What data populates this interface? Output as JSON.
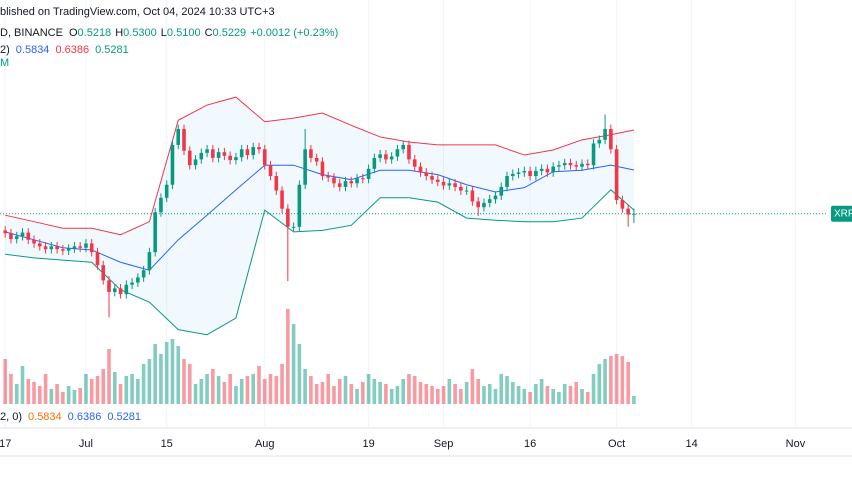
{
  "chart_data": {
    "type": "candlestick",
    "header": "blished on TradingView.com, Oct 04, 2024 10:33 UTC+3",
    "symbol": "D, BINANCE",
    "ohlc_legend": [
      {
        "label": "O",
        "value": "0.5218"
      },
      {
        "label": "H",
        "value": "0.5300"
      },
      {
        "label": "L",
        "value": "0.5100"
      },
      {
        "label": "C",
        "value": "0.5229"
      }
    ],
    "change": "+0.0012 (+0.23%)",
    "indicator_legend": {
      "params": "2)",
      "values": [
        "0.5834",
        "0.6386",
        "0.5281"
      ]
    },
    "indicator_tag": "M",
    "bottom_legend": {
      "params": "2, 0)",
      "values": [
        "0.5834",
        "0.6386",
        "0.5281"
      ]
    },
    "price_tag": "XRP",
    "up_color": "#089981",
    "down_color": "#f23645",
    "xlim": [
      -0.9,
      142.3
    ],
    "ylim": [
      0.259,
      0.818
    ],
    "volume_lim": [
      0,
      100
    ],
    "xticks": [
      {
        "value": 0,
        "label": "17"
      },
      {
        "value": 14,
        "label": "Jul"
      },
      {
        "value": 28,
        "label": "15"
      },
      {
        "value": 45,
        "label": "Aug"
      },
      {
        "value": 63,
        "label": "19"
      },
      {
        "value": 76,
        "label": "Sep"
      },
      {
        "value": 91,
        "label": "16"
      },
      {
        "value": 106,
        "label": "Oct"
      },
      {
        "value": 119,
        "label": "14"
      },
      {
        "value": 137,
        "label": "Nov"
      }
    ],
    "open": [
      0.5,
      0.496,
      0.488,
      0.492,
      0.497,
      0.487,
      0.482,
      0.478,
      0.474,
      0.478,
      0.474,
      0.472,
      0.475,
      0.478,
      0.476,
      0.482,
      0.47,
      0.452,
      0.431,
      0.415,
      0.42,
      0.412,
      0.425,
      0.428,
      0.435,
      0.445,
      0.47,
      0.525,
      0.545,
      0.563,
      0.618,
      0.64,
      0.61,
      0.59,
      0.598,
      0.607,
      0.612,
      0.6,
      0.608,
      0.603,
      0.597,
      0.601,
      0.612,
      0.604,
      0.615,
      0.612,
      0.59,
      0.575,
      0.555,
      0.53,
      0.505,
      0.505,
      0.563,
      0.612,
      0.6,
      0.595,
      0.575,
      0.573,
      0.565,
      0.56,
      0.568,
      0.565,
      0.572,
      0.571,
      0.585,
      0.6,
      0.605,
      0.598,
      0.602,
      0.612,
      0.618,
      0.598,
      0.588,
      0.58,
      0.575,
      0.57,
      0.567,
      0.562,
      0.565,
      0.56,
      0.555,
      0.555,
      0.54,
      0.532,
      0.538,
      0.543,
      0.548,
      0.56,
      0.575,
      0.578,
      0.58,
      0.582,
      0.575,
      0.582,
      0.585,
      0.58,
      0.588,
      0.59,
      0.593,
      0.59,
      0.588,
      0.592,
      0.59,
      0.62,
      0.625,
      0.64,
      0.612,
      0.542,
      0.53,
      0.5218
    ],
    "high": [
      0.506,
      0.502,
      0.498,
      0.503,
      0.503,
      0.493,
      0.488,
      0.484,
      0.484,
      0.484,
      0.48,
      0.481,
      0.484,
      0.484,
      0.488,
      0.488,
      0.476,
      0.458,
      0.437,
      0.426,
      0.426,
      0.431,
      0.434,
      0.441,
      0.451,
      0.476,
      0.531,
      0.551,
      0.569,
      0.624,
      0.646,
      0.646,
      0.616,
      0.604,
      0.613,
      0.618,
      0.618,
      0.614,
      0.614,
      0.609,
      0.607,
      0.618,
      0.618,
      0.621,
      0.621,
      0.618,
      0.596,
      0.581,
      0.561,
      0.536,
      0.511,
      0.569,
      0.64,
      0.618,
      0.606,
      0.601,
      0.581,
      0.579,
      0.571,
      0.574,
      0.574,
      0.578,
      0.578,
      0.591,
      0.606,
      0.611,
      0.611,
      0.608,
      0.618,
      0.624,
      0.624,
      0.604,
      0.594,
      0.586,
      0.581,
      0.576,
      0.573,
      0.571,
      0.571,
      0.566,
      0.561,
      0.561,
      0.546,
      0.544,
      0.549,
      0.554,
      0.566,
      0.581,
      0.584,
      0.586,
      0.588,
      0.588,
      0.588,
      0.591,
      0.591,
      0.594,
      0.596,
      0.599,
      0.599,
      0.596,
      0.598,
      0.598,
      0.626,
      0.631,
      0.66,
      0.646,
      0.618,
      0.548,
      0.536,
      0.53
    ],
    "low": [
      0.49,
      0.482,
      0.482,
      0.486,
      0.481,
      0.476,
      0.472,
      0.468,
      0.468,
      0.468,
      0.466,
      0.466,
      0.469,
      0.47,
      0.47,
      0.464,
      0.446,
      0.425,
      0.38,
      0.409,
      0.406,
      0.406,
      0.419,
      0.422,
      0.429,
      0.439,
      0.464,
      0.519,
      0.539,
      0.557,
      0.612,
      0.604,
      0.584,
      0.584,
      0.592,
      0.601,
      0.594,
      0.594,
      0.597,
      0.591,
      0.591,
      0.595,
      0.598,
      0.598,
      0.606,
      0.584,
      0.569,
      0.549,
      0.524,
      0.43,
      0.499,
      0.499,
      0.557,
      0.594,
      0.589,
      0.569,
      0.567,
      0.559,
      0.554,
      0.554,
      0.559,
      0.559,
      0.565,
      0.565,
      0.579,
      0.594,
      0.592,
      0.592,
      0.596,
      0.606,
      0.592,
      0.582,
      0.574,
      0.569,
      0.564,
      0.561,
      0.556,
      0.556,
      0.554,
      0.549,
      0.549,
      0.534,
      0.52,
      0.526,
      0.532,
      0.537,
      0.542,
      0.554,
      0.569,
      0.572,
      0.574,
      0.569,
      0.569,
      0.576,
      0.574,
      0.574,
      0.582,
      0.584,
      0.584,
      0.582,
      0.582,
      0.584,
      0.584,
      0.614,
      0.619,
      0.606,
      0.536,
      0.524,
      0.505,
      0.51
    ],
    "close": [
      0.496,
      0.488,
      0.492,
      0.497,
      0.487,
      0.482,
      0.478,
      0.474,
      0.478,
      0.474,
      0.472,
      0.475,
      0.478,
      0.476,
      0.482,
      0.47,
      0.452,
      0.431,
      0.415,
      0.42,
      0.412,
      0.425,
      0.428,
      0.435,
      0.445,
      0.47,
      0.525,
      0.545,
      0.563,
      0.618,
      0.64,
      0.61,
      0.59,
      0.598,
      0.607,
      0.612,
      0.6,
      0.608,
      0.603,
      0.597,
      0.601,
      0.612,
      0.604,
      0.615,
      0.612,
      0.59,
      0.575,
      0.555,
      0.53,
      0.505,
      0.505,
      0.563,
      0.612,
      0.6,
      0.595,
      0.575,
      0.573,
      0.565,
      0.56,
      0.568,
      0.565,
      0.572,
      0.571,
      0.585,
      0.6,
      0.605,
      0.598,
      0.602,
      0.612,
      0.618,
      0.598,
      0.588,
      0.58,
      0.575,
      0.57,
      0.567,
      0.562,
      0.565,
      0.56,
      0.555,
      0.555,
      0.54,
      0.532,
      0.538,
      0.543,
      0.548,
      0.56,
      0.575,
      0.578,
      0.58,
      0.582,
      0.575,
      0.582,
      0.585,
      0.58,
      0.588,
      0.59,
      0.593,
      0.59,
      0.588,
      0.592,
      0.59,
      0.62,
      0.625,
      0.64,
      0.612,
      0.542,
      0.53,
      0.5218,
      0.5229
    ],
    "volume": [
      45,
      30,
      20,
      38,
      25,
      22,
      18,
      30,
      15,
      20,
      12,
      18,
      14,
      16,
      30,
      25,
      28,
      35,
      55,
      32,
      20,
      28,
      30,
      25,
      40,
      45,
      60,
      50,
      62,
      65,
      58,
      45,
      40,
      20,
      25,
      30,
      35,
      28,
      22,
      30,
      18,
      25,
      28,
      30,
      38,
      25,
      30,
      28,
      40,
      95,
      80,
      60,
      35,
      28,
      20,
      22,
      30,
      18,
      25,
      28,
      20,
      15,
      22,
      30,
      25,
      22,
      20,
      15,
      18,
      25,
      30,
      28,
      22,
      20,
      18,
      15,
      18,
      25,
      20,
      15,
      22,
      35,
      25,
      18,
      20,
      15,
      30,
      28,
      22,
      18,
      15,
      12,
      20,
      25,
      18,
      15,
      12,
      20,
      18,
      22,
      15,
      12,
      30,
      40,
      45,
      48,
      50,
      48,
      42,
      8
    ],
    "bands": {
      "x": [
        0,
        5,
        10,
        15,
        20,
        25,
        30,
        35,
        40,
        45,
        50,
        55,
        60,
        65,
        70,
        75,
        80,
        85,
        90,
        95,
        100,
        105,
        109
      ],
      "upper": {
        "color": "#f23645",
        "values": [
          0.521,
          0.512,
          0.503,
          0.503,
          0.494,
          0.512,
          0.652,
          0.673,
          0.684,
          0.65,
          0.655,
          0.662,
          0.645,
          0.629,
          0.622,
          0.618,
          0.618,
          0.618,
          0.604,
          0.611,
          0.625,
          0.632,
          0.6386
        ]
      },
      "basis": {
        "color": "#2962ff",
        "values": [
          0.498,
          0.487,
          0.476,
          0.473,
          0.456,
          0.445,
          0.487,
          0.521,
          0.556,
          0.59,
          0.59,
          0.577,
          0.57,
          0.583,
          0.583,
          0.577,
          0.563,
          0.553,
          0.559,
          0.581,
          0.583,
          0.59,
          0.5834
        ]
      },
      "lower": {
        "color": "#089981",
        "values": [
          0.467,
          0.462,
          0.459,
          0.456,
          0.418,
          0.401,
          0.363,
          0.356,
          0.379,
          0.528,
          0.498,
          0.5,
          0.507,
          0.545,
          0.545,
          0.539,
          0.517,
          0.514,
          0.512,
          0.512,
          0.517,
          0.556,
          0.5281
        ]
      }
    }
  }
}
